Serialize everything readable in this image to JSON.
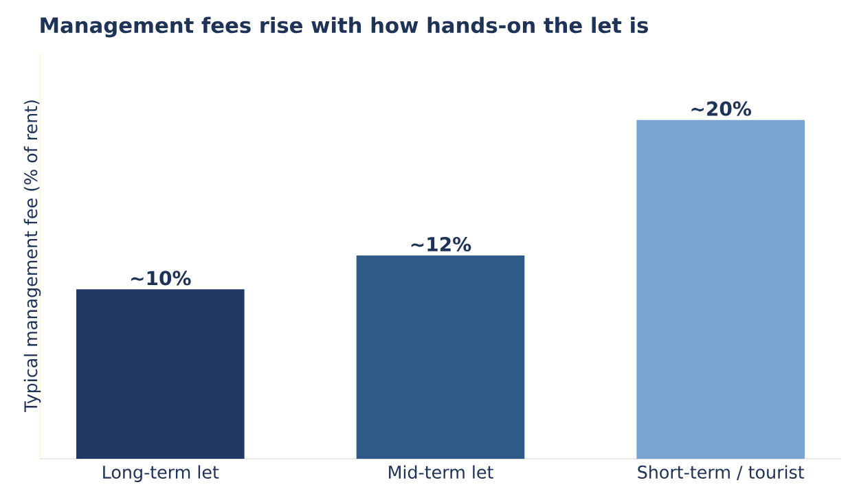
{
  "chart_data": {
    "type": "bar",
    "title": "Management fees rise with how hands-on the let is",
    "ylabel": "Typical management fee (% of rent)",
    "categories": [
      "Long-term let",
      "Mid-term let",
      "Short-term / tourist"
    ],
    "values": [
      10,
      12,
      20
    ],
    "colors": [
      "#1f3864",
      "#2e5a88",
      "#7aa3cf"
    ],
    "value_labels": [
      "~10%",
      "~12%",
      "~20%"
    ],
    "ylim": [
      0,
      24
    ],
    "tick_labels": "x"
  }
}
